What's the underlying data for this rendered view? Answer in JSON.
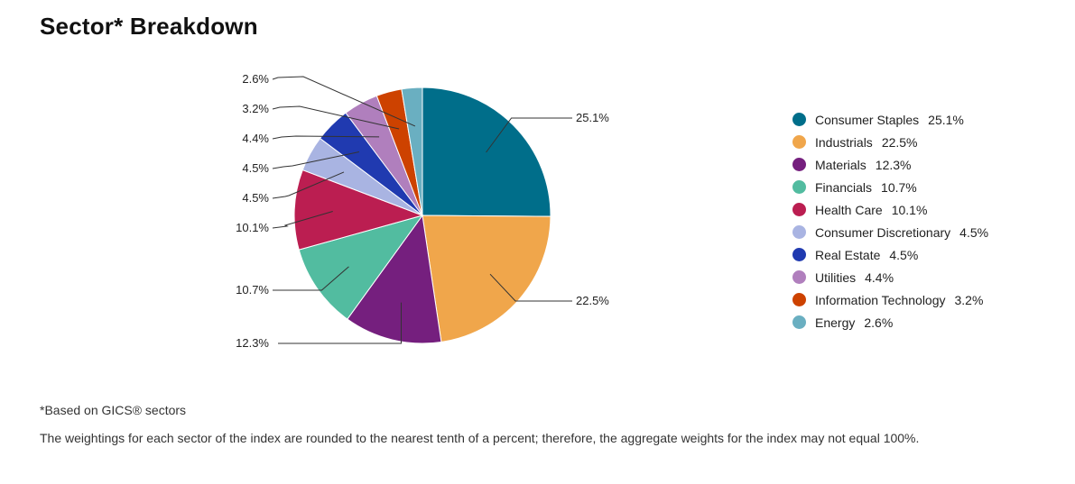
{
  "page": {
    "title": "Sector* Breakdown",
    "footnote": "*Based on GICS® sectors",
    "disclaimer": "The weightings for each sector of the index are rounded to the nearest tenth of a percent; therefore, the aggregate weights for the index may not equal 100%."
  },
  "chart_data": {
    "type": "pie",
    "title": "Sector* Breakdown",
    "legend_position": "right",
    "slices": [
      {
        "label": "Consumer Staples",
        "value": 25.1,
        "display": "25.1%",
        "color": "#006e8a"
      },
      {
        "label": "Industrials",
        "value": 22.5,
        "display": "22.5%",
        "color": "#f0a64b"
      },
      {
        "label": "Materials",
        "value": 12.3,
        "display": "12.3%",
        "color": "#751f7e"
      },
      {
        "label": "Financials",
        "value": 10.7,
        "display": "10.7%",
        "color": "#52bca0"
      },
      {
        "label": "Health Care",
        "value": 10.1,
        "display": "10.1%",
        "color": "#bb1e51"
      },
      {
        "label": "Consumer Discretionary",
        "value": 4.5,
        "display": "4.5%",
        "color": "#a9b4e2"
      },
      {
        "label": "Real Estate",
        "value": 4.5,
        "display": "4.5%",
        "color": "#203ab0"
      },
      {
        "label": "Utilities",
        "value": 4.4,
        "display": "4.4%",
        "color": "#b07fbd"
      },
      {
        "label": "Information Technology",
        "value": 3.2,
        "display": "3.2%",
        "color": "#cd4200"
      },
      {
        "label": "Energy",
        "value": 2.6,
        "display": "2.6%",
        "color": "#6aafc1"
      }
    ]
  }
}
